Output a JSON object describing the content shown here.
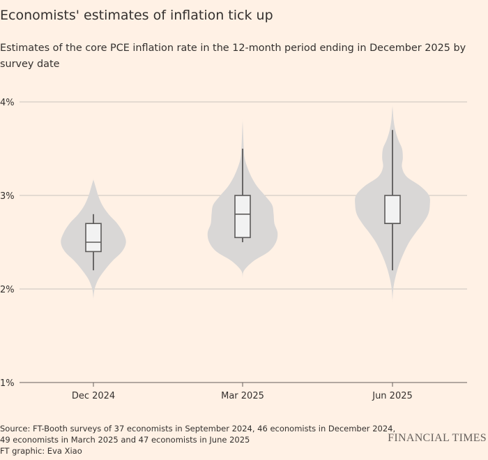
{
  "title": "Economists' estimates of inflation tick up",
  "subtitle": "Estimates of the core PCE inflation rate in the 12-month period ending in December 2025 by survey date",
  "source_lines": [
    "Source: FT-Booth surveys of 37 economists in September 2024, 46 economists in December 2024,",
    "49 economists in March 2025 and 47 economists in June 2025",
    "FT graphic: Eva Xiao"
  ],
  "brand": "FINANCIAL TIMES",
  "colors": {
    "background": "#fff1e5",
    "violin": "#d9d7d6",
    "box_fill": "#f2f2f2",
    "box_stroke": "#5c5a59",
    "grid": "#c9c3bd",
    "text": "#33302e"
  },
  "chart_data": {
    "type": "violin",
    "categories": [
      "Dec 2024",
      "Mar 2025",
      "Jun 2025"
    ],
    "y_ticks": [
      1,
      2,
      3,
      4
    ],
    "y_tick_labels": [
      "1%",
      "2%",
      "3%",
      "4%"
    ],
    "ylim": [
      1,
      4
    ],
    "grid": true,
    "series": [
      {
        "category": "Dec 2024",
        "whisker_low": 2.2,
        "q1": 2.4,
        "median": 2.5,
        "q3": 2.7,
        "whisker_high": 2.8,
        "density": [
          [
            1.9,
            0
          ],
          [
            2.0,
            0.03
          ],
          [
            2.1,
            0.12
          ],
          [
            2.2,
            0.28
          ],
          [
            2.3,
            0.48
          ],
          [
            2.4,
            0.72
          ],
          [
            2.5,
            0.82
          ],
          [
            2.6,
            0.75
          ],
          [
            2.7,
            0.6
          ],
          [
            2.8,
            0.38
          ],
          [
            2.9,
            0.22
          ],
          [
            3.0,
            0.12
          ],
          [
            3.1,
            0.05
          ],
          [
            3.17,
            0
          ]
        ]
      },
      {
        "category": "Mar 2025",
        "whisker_low": 2.5,
        "q1": 2.55,
        "median": 2.8,
        "q3": 3.0,
        "whisker_high": 3.5,
        "density": [
          [
            2.13,
            0
          ],
          [
            2.2,
            0.04
          ],
          [
            2.3,
            0.28
          ],
          [
            2.4,
            0.66
          ],
          [
            2.5,
            0.84
          ],
          [
            2.6,
            0.88
          ],
          [
            2.7,
            0.8
          ],
          [
            2.8,
            0.78
          ],
          [
            2.9,
            0.74
          ],
          [
            3.0,
            0.56
          ],
          [
            3.1,
            0.36
          ],
          [
            3.2,
            0.22
          ],
          [
            3.3,
            0.12
          ],
          [
            3.4,
            0.05
          ],
          [
            3.5,
            0.03
          ],
          [
            3.6,
            0.02
          ],
          [
            3.7,
            0.01
          ],
          [
            3.8,
            0
          ]
        ]
      },
      {
        "category": "Jun 2025",
        "whisker_low": 2.2,
        "q1": 2.7,
        "median": 2.7,
        "q3": 3.0,
        "whisker_high": 3.7,
        "density": [
          [
            1.88,
            0
          ],
          [
            2.0,
            0.02
          ],
          [
            2.1,
            0.06
          ],
          [
            2.2,
            0.12
          ],
          [
            2.3,
            0.2
          ],
          [
            2.4,
            0.3
          ],
          [
            2.5,
            0.42
          ],
          [
            2.6,
            0.58
          ],
          [
            2.7,
            0.76
          ],
          [
            2.8,
            0.9
          ],
          [
            2.9,
            0.94
          ],
          [
            3.0,
            0.92
          ],
          [
            3.1,
            0.7
          ],
          [
            3.2,
            0.36
          ],
          [
            3.3,
            0.24
          ],
          [
            3.4,
            0.26
          ],
          [
            3.5,
            0.24
          ],
          [
            3.6,
            0.14
          ],
          [
            3.7,
            0.07
          ],
          [
            3.8,
            0.03
          ],
          [
            3.9,
            0.01
          ],
          [
            3.96,
            0
          ]
        ]
      }
    ]
  }
}
